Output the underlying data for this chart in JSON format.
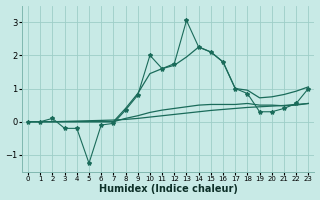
{
  "xlabel": "Humidex (Indice chaleur)",
  "xlim": [
    -0.5,
    23.5
  ],
  "ylim": [
    -1.5,
    3.5
  ],
  "yticks": [
    -1,
    0,
    1,
    2,
    3
  ],
  "xticks": [
    0,
    1,
    2,
    3,
    4,
    5,
    6,
    7,
    8,
    9,
    10,
    11,
    12,
    13,
    14,
    15,
    16,
    17,
    18,
    19,
    20,
    21,
    22,
    23
  ],
  "bg_color": "#c8eae6",
  "line_color": "#1a6b5a",
  "grid_color": "#9ecec8",
  "main_y": [
    0.0,
    0.0,
    0.1,
    -0.2,
    -0.2,
    -1.25,
    -0.1,
    -0.05,
    0.35,
    0.8,
    2.0,
    1.6,
    1.75,
    3.05,
    2.25,
    2.1,
    1.8,
    1.0,
    0.85,
    0.3,
    0.3,
    0.4,
    0.55,
    1.0
  ],
  "upper_y": [
    0.0,
    0.0,
    0.0,
    0.0,
    0.0,
    0.0,
    0.0,
    0.0,
    0.4,
    0.85,
    1.45,
    1.6,
    1.7,
    1.95,
    2.25,
    2.1,
    1.8,
    1.0,
    0.95,
    0.72,
    0.75,
    0.82,
    0.92,
    1.05
  ],
  "lower_y": [
    0.0,
    0.0,
    0.0,
    0.0,
    0.0,
    0.0,
    0.0,
    0.0,
    0.1,
    0.18,
    0.28,
    0.35,
    0.4,
    0.45,
    0.5,
    0.52,
    0.52,
    0.52,
    0.55,
    0.5,
    0.5,
    0.48,
    0.5,
    0.55
  ],
  "mean_y": [
    0.0,
    0.0,
    0.0,
    0.01,
    0.02,
    0.03,
    0.04,
    0.05,
    0.07,
    0.1,
    0.14,
    0.18,
    0.22,
    0.26,
    0.3,
    0.34,
    0.37,
    0.4,
    0.43,
    0.45,
    0.47,
    0.49,
    0.52,
    0.55
  ]
}
